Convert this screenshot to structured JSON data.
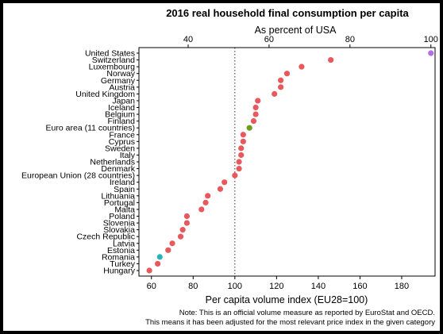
{
  "chart_data": {
    "type": "scatter",
    "title": "2016 real household final consumption per capita",
    "top_axis": {
      "label": "As percent of USA",
      "ticks": [
        40,
        60,
        80,
        100
      ]
    },
    "xlabel": "Per capita volume index (EU28=100)",
    "xlim": [
      54,
      196
    ],
    "x_ticks": [
      60,
      80,
      100,
      120,
      140,
      160,
      180
    ],
    "reference_line": {
      "x": 100,
      "style": "dotted"
    },
    "note_lines": [
      "Note: This is an official volume measure as reported by EuroStat and OECD.",
      "This means it has been adjusted for the most relevant price index in the given category"
    ],
    "colors": {
      "default": "#e8595d",
      "United States": "#b36ee8",
      "Euro area (11 countries)": "#6a9c1e",
      "Romania": "#28b3b8"
    },
    "categories": [
      "United States",
      "Switzerland",
      "Luxembourg",
      "Norway",
      "Germany",
      "Austria",
      "United Kingdom",
      "Japan",
      "Iceland",
      "Belgium",
      "Finland",
      "Euro area (11 countries)",
      "France",
      "Cyprus",
      "Sweden",
      "Italy",
      "Netherlands",
      "Denmark",
      "European Union (28 countries)",
      "Ireland",
      "Spain",
      "Lithuania",
      "Portugal",
      "Malta",
      "Poland",
      "Slovenia",
      "Slovakia",
      "Czech Republic",
      "Latvia",
      "Estonia",
      "Romania",
      "Turkey",
      "Hungary"
    ],
    "values": [
      194,
      146,
      132,
      125,
      122,
      122,
      119,
      111,
      110,
      110,
      109,
      107,
      104,
      104,
      103,
      103,
      102,
      102,
      100,
      95,
      93,
      87,
      86,
      84,
      77,
      77,
      75,
      74,
      70,
      68,
      64,
      63,
      59
    ]
  }
}
